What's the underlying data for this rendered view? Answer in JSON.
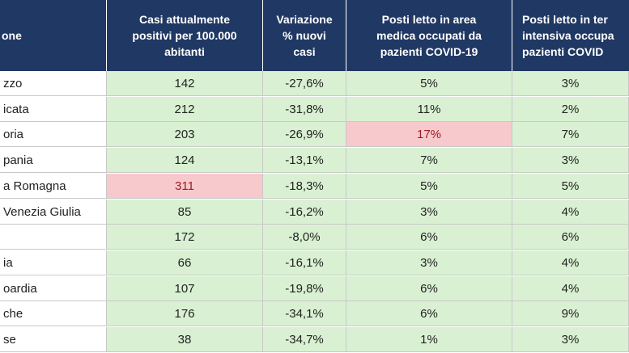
{
  "table": {
    "header": [
      [
        "one"
      ],
      [
        "Casi attualmente",
        "positivi per 100.000",
        "abitanti"
      ],
      [
        "Variazione",
        "% nuovi",
        "casi"
      ],
      [
        "Posti letto in area",
        "medica occupati da",
        "pazienti COVID-19"
      ],
      [
        "Posti letto in ter",
        "intensiva occupa",
        "pazienti COVID"
      ]
    ],
    "rows": [
      {
        "name": "zzo",
        "values": [
          "142",
          "-27,6%",
          "5%",
          "3%"
        ]
      },
      {
        "name": "icata",
        "values": [
          "212",
          "-31,8%",
          "11%",
          "2%"
        ]
      },
      {
        "name": "oria",
        "values": [
          "203",
          "-26,9%",
          "17%",
          "7%"
        ]
      },
      {
        "name": "pania",
        "values": [
          "124",
          "-13,1%",
          "7%",
          "3%"
        ]
      },
      {
        "name": "a Romagna",
        "values": [
          "311",
          "-18,3%",
          "5%",
          "5%"
        ]
      },
      {
        "name": "Venezia Giulia",
        "values": [
          "85",
          "-16,2%",
          "3%",
          "4%"
        ]
      },
      {
        "values": [
          "172",
          "-8,0%",
          "6%",
          "6%"
        ]
      },
      {
        "name": "ia",
        "values": [
          "66",
          "-16,1%",
          "3%",
          "4%"
        ]
      },
      {
        "name": "oardia",
        "values": [
          "107",
          "-19,8%",
          "6%",
          "4%"
        ]
      },
      {
        "name": "che",
        "values": [
          "176",
          "-34,1%",
          "6%",
          "9%"
        ]
      },
      {
        "name": "se",
        "values": [
          "38",
          "-34,7%",
          "1%",
          "3%"
        ]
      }
    ],
    "highlighted_cells": [
      [
        4,
        0
      ],
      [
        2,
        2
      ]
    ]
  }
}
